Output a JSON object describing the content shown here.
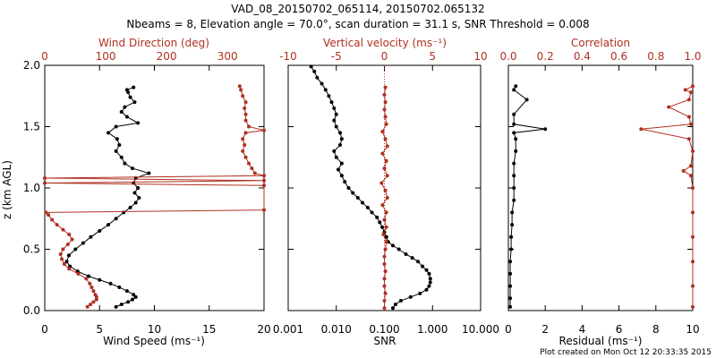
{
  "title_line1": "VAD_08_20150702_065114, 20150702.065132",
  "title_line2": "Nbeams = 8, Elevation angle = 70.0°, scan duration = 31.1 s, SNR Threshold = 0.008",
  "footer": "Plot created on Mon Oct 12 20:33:35 2015",
  "colors": {
    "black": "#000000",
    "red": "#b03020"
  },
  "chart_data": [
    {
      "type": "line",
      "name": "wind-panel",
      "ylabel": "z (km AGL)",
      "ylim": [
        0,
        2.0
      ],
      "yticks": [
        "0.0",
        "0.5",
        "1.0",
        "1.5",
        "2.0"
      ],
      "xlabel": "Wind Speed (ms⁻¹)",
      "xlim": [
        0,
        20
      ],
      "xticks": [
        "0",
        "5",
        "10",
        "15",
        "20"
      ],
      "x2label": "Wind Direction (deg)",
      "x2lim": [
        0,
        360
      ],
      "x2ticks": [
        "0",
        "100",
        "200",
        "300"
      ],
      "series": [
        {
          "name": "Wind Speed",
          "color": "#000000",
          "points": [
            [
              6.5,
              0.03
            ],
            [
              7.0,
              0.05
            ],
            [
              7.6,
              0.07
            ],
            [
              8.0,
              0.09
            ],
            [
              8.3,
              0.11
            ],
            [
              8.1,
              0.13
            ],
            [
              7.5,
              0.16
            ],
            [
              6.8,
              0.19
            ],
            [
              6.0,
              0.22
            ],
            [
              5.0,
              0.25
            ],
            [
              4.0,
              0.28
            ],
            [
              3.0,
              0.32
            ],
            [
              2.3,
              0.36
            ],
            [
              2.0,
              0.4
            ],
            [
              2.2,
              0.45
            ],
            [
              2.8,
              0.5
            ],
            [
              3.5,
              0.55
            ],
            [
              4.2,
              0.6
            ],
            [
              5.0,
              0.65
            ],
            [
              5.8,
              0.7
            ],
            [
              6.5,
              0.75
            ],
            [
              7.2,
              0.8
            ],
            [
              7.8,
              0.84
            ],
            [
              8.3,
              0.88
            ],
            [
              8.6,
              0.92
            ],
            [
              8.2,
              0.96
            ],
            [
              8.5,
              1.0
            ],
            [
              8.1,
              1.04
            ],
            [
              8.3,
              1.08
            ],
            [
              9.5,
              1.12
            ],
            [
              8.0,
              1.16
            ],
            [
              7.3,
              1.2
            ],
            [
              7.0,
              1.25
            ],
            [
              6.5,
              1.3
            ],
            [
              6.8,
              1.35
            ],
            [
              6.6,
              1.4
            ],
            [
              5.8,
              1.45
            ],
            [
              6.5,
              1.5
            ],
            [
              8.5,
              1.53
            ],
            [
              7.5,
              1.58
            ],
            [
              7.0,
              1.62
            ],
            [
              7.3,
              1.66
            ],
            [
              8.2,
              1.7
            ],
            [
              7.8,
              1.74
            ],
            [
              7.6,
              1.78
            ],
            [
              7.5,
              1.8
            ],
            [
              8.1,
              1.82
            ]
          ]
        },
        {
          "name": "Wind Direction",
          "color": "#b03020",
          "points": [
            [
              70,
              0.03
            ],
            [
              75,
              0.05
            ],
            [
              80,
              0.07
            ],
            [
              85,
              0.09
            ],
            [
              85,
              0.11
            ],
            [
              83,
              0.13
            ],
            [
              80,
              0.16
            ],
            [
              77,
              0.19
            ],
            [
              74,
              0.22
            ],
            [
              68,
              0.26
            ],
            [
              55,
              0.3
            ],
            [
              40,
              0.34
            ],
            [
              32,
              0.38
            ],
            [
              28,
              0.42
            ],
            [
              26,
              0.46
            ],
            [
              30,
              0.5
            ],
            [
              38,
              0.54
            ],
            [
              45,
              0.58
            ],
            [
              40,
              0.62
            ],
            [
              30,
              0.66
            ],
            [
              20,
              0.7
            ],
            [
              12,
              0.74
            ],
            [
              6,
              0.78
            ],
            [
              2,
              0.8
            ],
            [
              360,
              0.82
            ],
            [
              360,
              1.02
            ],
            [
              0,
              1.04
            ],
            [
              360,
              1.06
            ],
            [
              0,
              1.08
            ],
            [
              360,
              1.1
            ],
            [
              345,
              1.12
            ],
            [
              340,
              1.16
            ],
            [
              335,
              1.2
            ],
            [
              330,
              1.25
            ],
            [
              325,
              1.3
            ],
            [
              328,
              1.35
            ],
            [
              325,
              1.4
            ],
            [
              330,
              1.45
            ],
            [
              360,
              1.47
            ],
            [
              335,
              1.5
            ],
            [
              330,
              1.55
            ],
            [
              330,
              1.6
            ],
            [
              328,
              1.65
            ],
            [
              330,
              1.7
            ],
            [
              325,
              1.75
            ],
            [
              322,
              1.8
            ],
            [
              320,
              1.83
            ]
          ]
        }
      ]
    },
    {
      "type": "line",
      "name": "snr-vv-panel",
      "xlabel": "SNR",
      "xscale": "log",
      "xlim": [
        0.001,
        10
      ],
      "xticks": [
        "0.001",
        "0.010",
        "0.100",
        "1.000",
        "10.000"
      ],
      "x2label": "Vertical velocity (ms⁻¹)",
      "x2lim": [
        -10,
        10
      ],
      "x2ticks": [
        "-10",
        "-5",
        "0",
        "5",
        "10"
      ],
      "series": [
        {
          "name": "SNR",
          "color": "#000000",
          "points": [
            [
              0.15,
              0.02
            ],
            [
              0.17,
              0.05
            ],
            [
              0.22,
              0.08
            ],
            [
              0.35,
              0.11
            ],
            [
              0.55,
              0.14
            ],
            [
              0.75,
              0.17
            ],
            [
              0.85,
              0.2
            ],
            [
              0.9,
              0.23
            ],
            [
              0.9,
              0.26
            ],
            [
              0.85,
              0.3
            ],
            [
              0.75,
              0.33
            ],
            [
              0.62,
              0.36
            ],
            [
              0.5,
              0.4
            ],
            [
              0.38,
              0.43
            ],
            [
              0.28,
              0.46
            ],
            [
              0.2,
              0.5
            ],
            [
              0.15,
              0.53
            ],
            [
              0.12,
              0.56
            ],
            [
              0.11,
              0.6
            ],
            [
              0.1,
              0.64
            ],
            [
              0.09,
              0.68
            ],
            [
              0.08,
              0.72
            ],
            [
              0.07,
              0.76
            ],
            [
              0.055,
              0.8
            ],
            [
              0.045,
              0.84
            ],
            [
              0.035,
              0.88
            ],
            [
              0.028,
              0.92
            ],
            [
              0.022,
              0.96
            ],
            [
              0.018,
              1.0
            ],
            [
              0.015,
              1.05
            ],
            [
              0.013,
              1.1
            ],
            [
              0.011,
              1.15
            ],
            [
              0.013,
              1.2
            ],
            [
              0.01,
              1.25
            ],
            [
              0.009,
              1.3
            ],
            [
              0.012,
              1.35
            ],
            [
              0.013,
              1.4
            ],
            [
              0.012,
              1.45
            ],
            [
              0.01,
              1.5
            ],
            [
              0.009,
              1.55
            ],
            [
              0.01,
              1.6
            ],
            [
              0.009,
              1.65
            ],
            [
              0.008,
              1.7
            ],
            [
              0.007,
              1.75
            ],
            [
              0.006,
              1.8
            ],
            [
              0.005,
              1.85
            ],
            [
              0.004,
              1.9
            ],
            [
              0.0035,
              1.95
            ],
            [
              0.003,
              1.99
            ]
          ]
        },
        {
          "name": "Vertical velocity",
          "color": "#b03020",
          "points": [
            [
              0.0,
              0.02
            ],
            [
              0.0,
              0.08
            ],
            [
              0.1,
              0.14
            ],
            [
              0.0,
              0.2
            ],
            [
              0.0,
              0.26
            ],
            [
              0.1,
              0.32
            ],
            [
              0.0,
              0.38
            ],
            [
              0.0,
              0.44
            ],
            [
              0.1,
              0.5
            ],
            [
              0.2,
              0.56
            ],
            [
              -0.1,
              0.62
            ],
            [
              0.2,
              0.68
            ],
            [
              0.0,
              0.74
            ],
            [
              0.2,
              0.8
            ],
            [
              -0.2,
              0.86
            ],
            [
              0.3,
              0.92
            ],
            [
              0.1,
              0.98
            ],
            [
              -0.3,
              1.04
            ],
            [
              0.3,
              1.1
            ],
            [
              0.0,
              1.16
            ],
            [
              0.2,
              1.22
            ],
            [
              -0.2,
              1.28
            ],
            [
              0.3,
              1.34
            ],
            [
              0.1,
              1.4
            ],
            [
              -0.2,
              1.46
            ],
            [
              0.2,
              1.52
            ],
            [
              0.1,
              1.58
            ],
            [
              0.0,
              1.64
            ],
            [
              0.1,
              1.7
            ],
            [
              0.0,
              1.76
            ],
            [
              0.1,
              1.82
            ]
          ]
        }
      ]
    },
    {
      "type": "line",
      "name": "correlation-panel",
      "xlabel": "Residual (ms⁻¹)",
      "xlim": [
        0,
        10
      ],
      "xticks": [
        "0",
        "2",
        "4",
        "6",
        "8",
        "10"
      ],
      "x2label": "Correlation",
      "x2lim": [
        0,
        1.0
      ],
      "x2ticks": [
        "0.0",
        "0.2",
        "0.4",
        "0.6",
        "0.8",
        "1.0"
      ],
      "series": [
        {
          "name": "Residual",
          "color": "#000000",
          "points": [
            [
              0.1,
              0.03
            ],
            [
              0.1,
              0.1
            ],
            [
              0.1,
              0.2
            ],
            [
              0.1,
              0.3
            ],
            [
              0.1,
              0.4
            ],
            [
              0.15,
              0.5
            ],
            [
              0.15,
              0.6
            ],
            [
              0.2,
              0.7
            ],
            [
              0.2,
              0.8
            ],
            [
              0.3,
              0.9
            ],
            [
              0.3,
              1.0
            ],
            [
              0.3,
              1.1
            ],
            [
              0.3,
              1.2
            ],
            [
              0.4,
              1.3
            ],
            [
              0.4,
              1.4
            ],
            [
              0.3,
              1.45
            ],
            [
              2.0,
              1.48
            ],
            [
              0.3,
              1.52
            ],
            [
              0.3,
              1.6
            ],
            [
              1.0,
              1.72
            ],
            [
              0.3,
              1.8
            ],
            [
              0.4,
              1.83
            ]
          ]
        },
        {
          "name": "Correlation",
          "color": "#b03020",
          "points": [
            [
              1.0,
              0.03
            ],
            [
              1.0,
              0.2
            ],
            [
              1.0,
              0.4
            ],
            [
              1.0,
              0.6
            ],
            [
              1.0,
              0.8
            ],
            [
              1.0,
              1.0
            ],
            [
              0.99,
              1.1
            ],
            [
              0.95,
              1.14
            ],
            [
              0.99,
              1.18
            ],
            [
              1.0,
              1.3
            ],
            [
              0.98,
              1.4
            ],
            [
              0.72,
              1.48
            ],
            [
              0.99,
              1.52
            ],
            [
              0.98,
              1.58
            ],
            [
              0.87,
              1.66
            ],
            [
              0.98,
              1.72
            ],
            [
              0.99,
              1.78
            ],
            [
              0.96,
              1.8
            ],
            [
              1.0,
              1.83
            ]
          ]
        }
      ]
    }
  ]
}
